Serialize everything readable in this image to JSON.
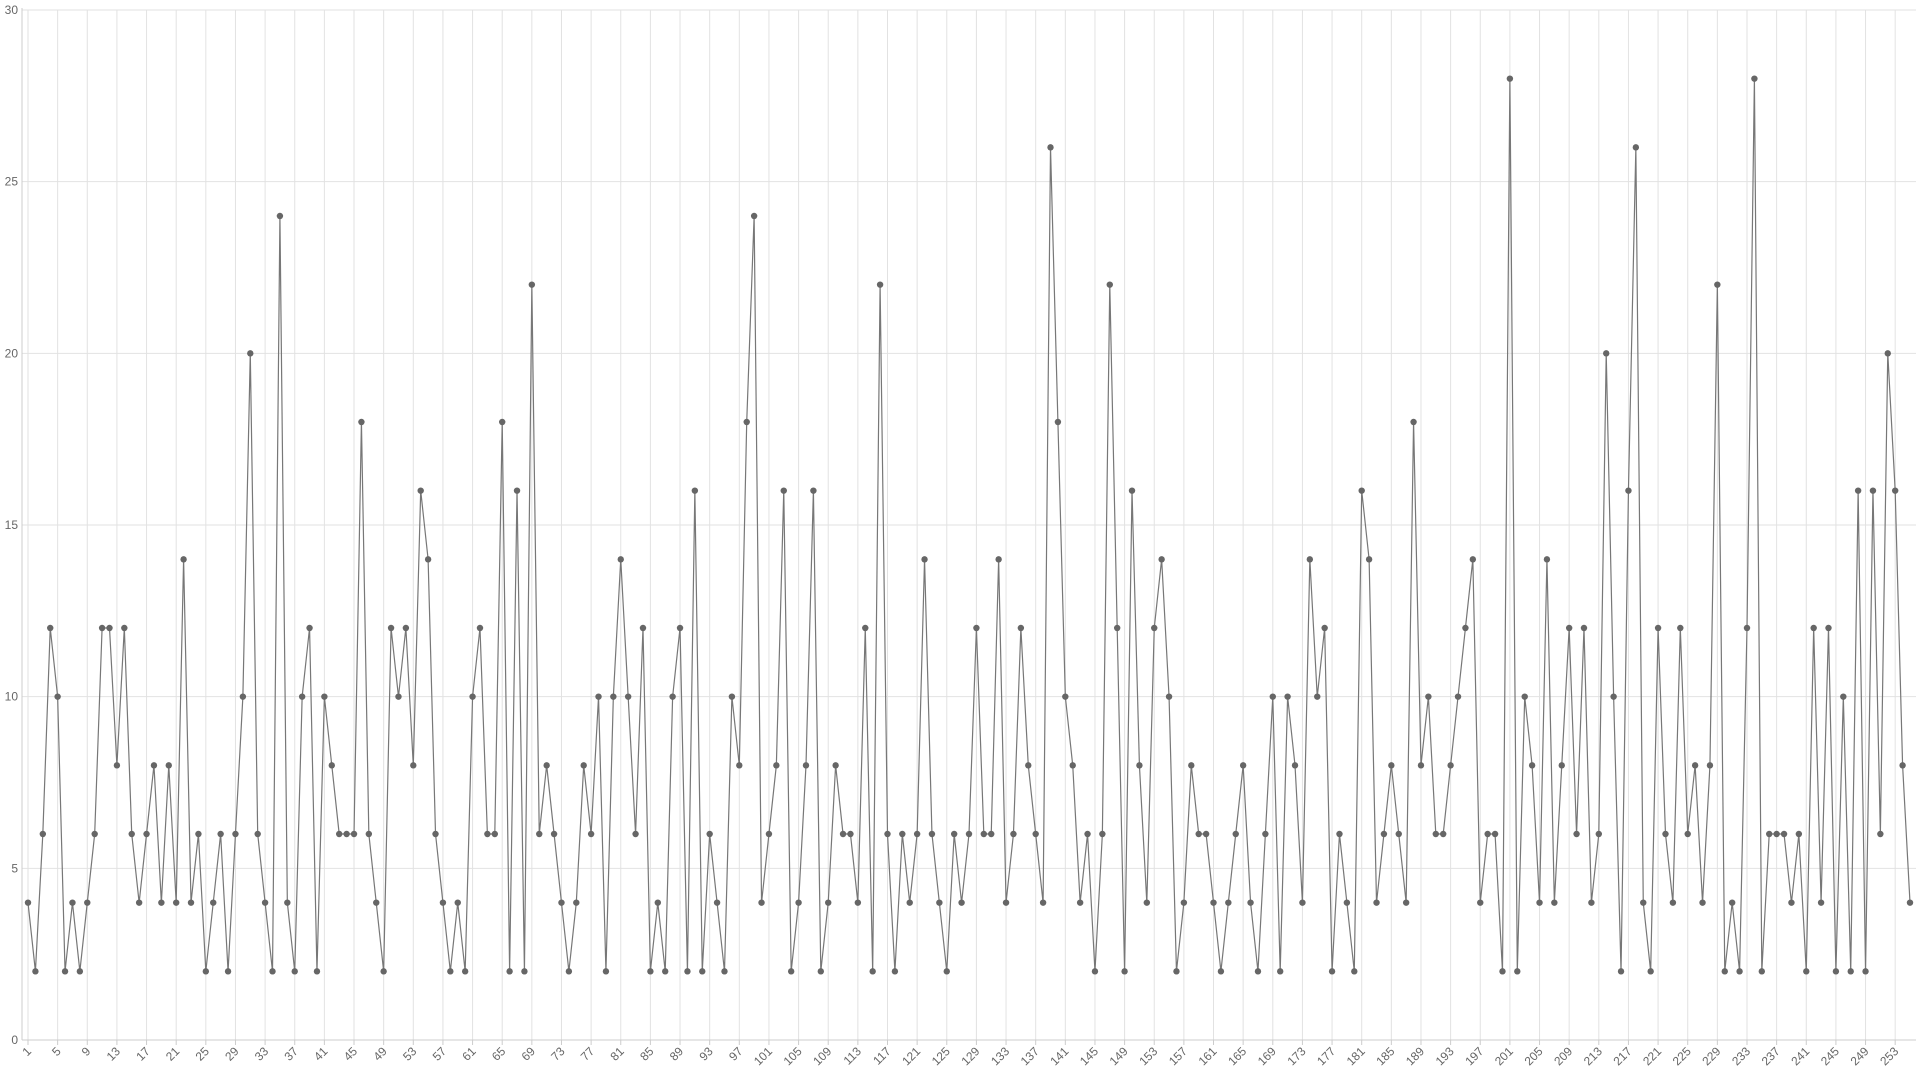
{
  "chart_data": {
    "type": "line",
    "color": "#777777",
    "marker_color": "#666666",
    "grid": true,
    "x": [
      1,
      2,
      3,
      4,
      5,
      6,
      7,
      8,
      9,
      10,
      11,
      12,
      13,
      14,
      15,
      16,
      17,
      18,
      19,
      20,
      21,
      22,
      23,
      24,
      25,
      26,
      27,
      28,
      29,
      30,
      31,
      32,
      33,
      34,
      35,
      36,
      37,
      38,
      39,
      40,
      41,
      42,
      43,
      44,
      45,
      46,
      47,
      48,
      49,
      50,
      51,
      52,
      53,
      54,
      55,
      56,
      57,
      58,
      59,
      60,
      61,
      62,
      63,
      64,
      65,
      66,
      67,
      68,
      69,
      70,
      71,
      72,
      73,
      74,
      75,
      76,
      77,
      78,
      79,
      80,
      81,
      82,
      83,
      84,
      85,
      86,
      87,
      88,
      89,
      90,
      91,
      92,
      93,
      94,
      95,
      96,
      97,
      98,
      99,
      100,
      101,
      102,
      103,
      104,
      105,
      106,
      107,
      108,
      109,
      110,
      111,
      112,
      113,
      114,
      115,
      116,
      117,
      118,
      119,
      120,
      121,
      122,
      123,
      124,
      125,
      126,
      127,
      128,
      129,
      130,
      131,
      132,
      133,
      134,
      135,
      136,
      137,
      138,
      139,
      140,
      141,
      142,
      143,
      144,
      145,
      146,
      147,
      148,
      149,
      150,
      151,
      152,
      153,
      154,
      155,
      156,
      157,
      158,
      159,
      160,
      161,
      162,
      163,
      164,
      165,
      166,
      167,
      168,
      169,
      170,
      171,
      172,
      173,
      174,
      175,
      176,
      177,
      178,
      179,
      180,
      181,
      182,
      183,
      184,
      185,
      186,
      187,
      188,
      189,
      190,
      191,
      192,
      193,
      194,
      195,
      196,
      197,
      198,
      199,
      200,
      201,
      202,
      203,
      204,
      205,
      206,
      207,
      208,
      209,
      210,
      211,
      212,
      213,
      214,
      215,
      216,
      217,
      218,
      219,
      220,
      221,
      222,
      223,
      224,
      225,
      226,
      227,
      228,
      229,
      230,
      231,
      232,
      233,
      234,
      235,
      236,
      237,
      238,
      239,
      240,
      241,
      242,
      243,
      244,
      245,
      246,
      247,
      248,
      249,
      250,
      251,
      252,
      253,
      254,
      255
    ],
    "values": [
      4,
      2,
      6,
      12,
      10,
      2,
      4,
      2,
      4,
      6,
      12,
      12,
      8,
      12,
      6,
      4,
      6,
      8,
      4,
      8,
      4,
      14,
      4,
      6,
      2,
      4,
      6,
      2,
      6,
      10,
      20,
      6,
      4,
      2,
      24,
      4,
      2,
      10,
      12,
      2,
      10,
      8,
      6,
      6,
      6,
      18,
      6,
      4,
      2,
      12,
      10,
      12,
      8,
      16,
      14,
      6,
      4,
      2,
      4,
      2,
      10,
      12,
      6,
      6,
      18,
      2,
      16,
      2,
      22,
      6,
      8,
      6,
      4,
      2,
      4,
      8,
      6,
      10,
      2,
      10,
      14,
      10,
      6,
      12,
      2,
      4,
      2,
      10,
      12,
      2,
      16,
      2,
      6,
      4,
      2,
      10,
      8,
      18,
      24,
      4,
      6,
      8,
      16,
      2,
      4,
      8,
      16,
      2,
      4,
      8,
      6,
      6,
      4,
      12,
      2,
      22,
      6,
      2,
      6,
      4,
      6,
      14,
      6,
      4,
      2,
      6,
      4,
      6,
      12,
      6,
      6,
      14,
      4,
      6,
      12,
      8,
      6,
      4,
      26,
      18,
      10,
      8,
      4,
      6,
      2,
      6,
      22,
      12,
      2,
      16,
      8,
      4,
      12,
      14,
      10,
      2,
      4,
      8,
      6,
      6,
      4,
      2,
      4,
      6,
      8,
      4,
      2,
      6,
      10,
      2,
      10,
      8,
      4,
      14,
      10,
      12,
      2,
      6,
      4,
      2,
      16,
      14,
      4,
      6,
      8,
      6,
      4,
      18,
      8,
      10,
      6,
      6,
      8,
      10,
      12,
      14,
      4,
      6,
      6,
      2,
      28,
      2,
      10,
      8,
      4,
      14,
      4,
      8,
      12,
      6,
      12,
      4,
      6,
      20,
      10,
      2,
      16,
      26,
      4,
      2,
      12,
      6,
      4,
      12,
      6,
      8,
      4,
      8,
      22,
      2,
      4,
      2,
      12,
      28,
      2,
      6,
      6,
      6,
      4,
      6,
      2,
      12,
      4,
      12,
      2,
      10,
      2,
      16,
      2,
      16,
      6,
      20,
      16,
      8,
      4
    ],
    "xlim": [
      1,
      255
    ],
    "xticks": [
      1,
      5,
      9,
      13,
      17,
      21,
      25,
      29,
      33,
      37,
      41,
      45,
      49,
      53,
      57,
      61,
      65,
      69,
      73,
      77,
      81,
      85,
      89,
      93,
      97,
      101,
      105,
      109,
      113,
      117,
      121,
      125,
      129,
      133,
      137,
      141,
      145,
      149,
      153,
      157,
      161,
      165,
      169,
      173,
      177,
      181,
      185,
      189,
      193,
      197,
      201,
      205,
      209,
      213,
      217,
      221,
      225,
      229,
      233,
      237,
      241,
      245,
      249,
      253
    ],
    "ylim": [
      0,
      30
    ],
    "yticks": [
      0,
      5,
      10,
      15,
      20,
      25,
      30
    ]
  }
}
